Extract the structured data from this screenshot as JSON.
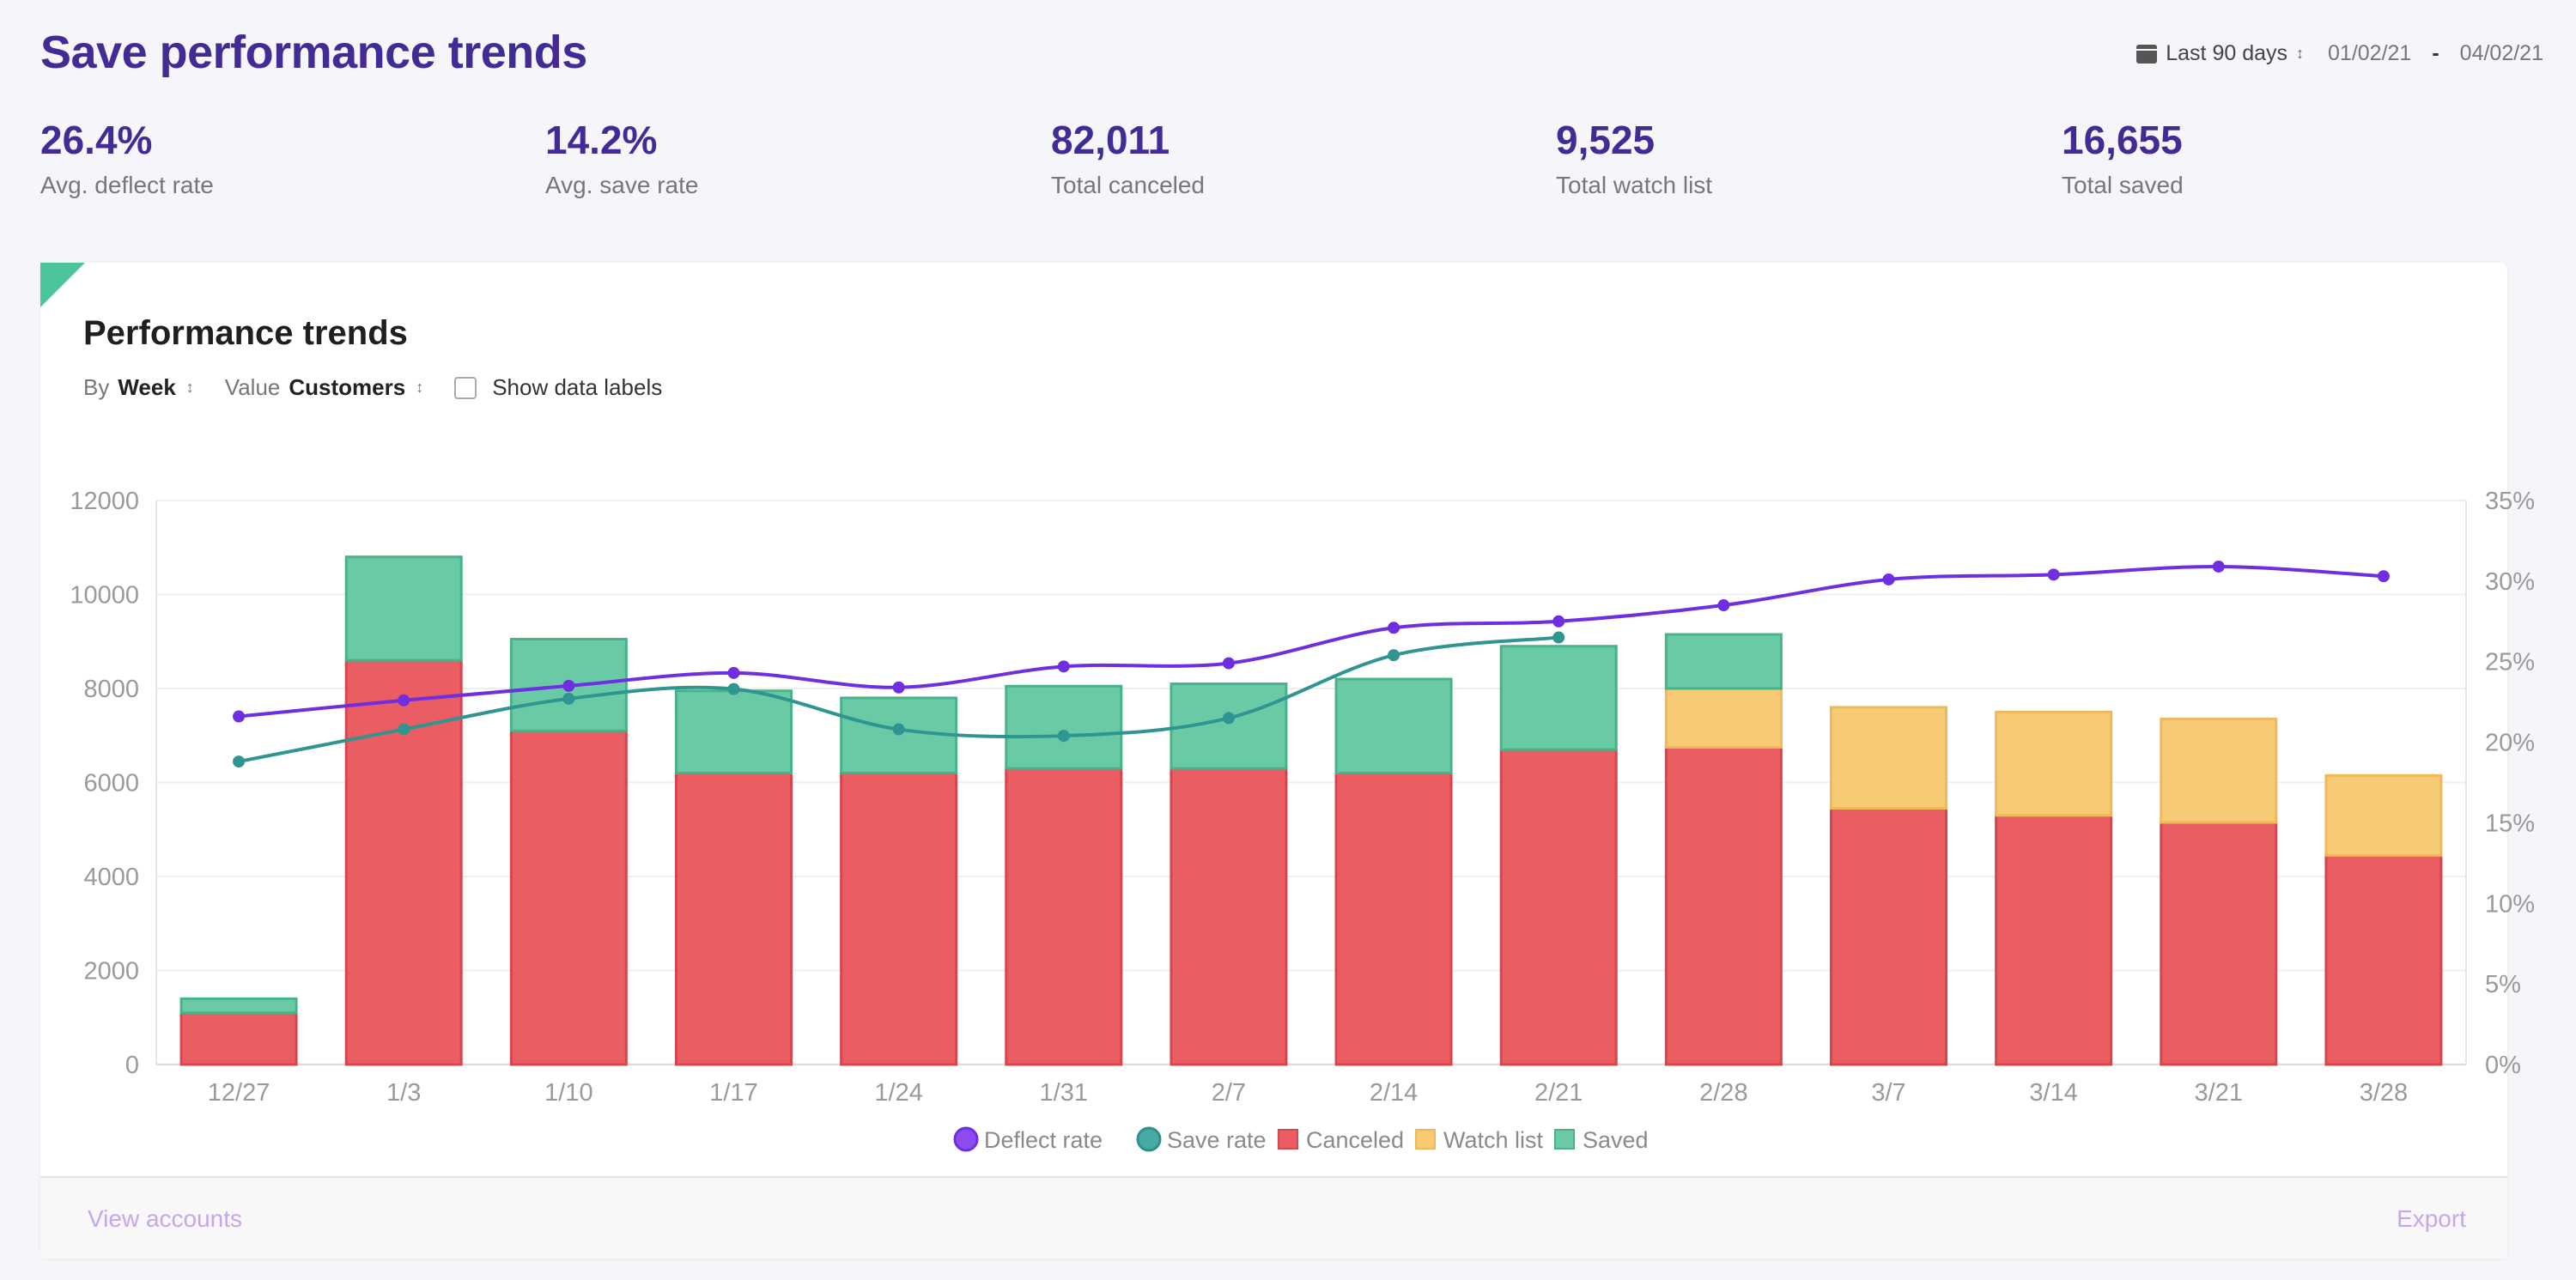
{
  "header": {
    "title": "Save performance trends",
    "range_label": "Last 90 days",
    "date_from": "01/02/21",
    "date_sep": "-",
    "date_to": "04/02/21"
  },
  "kpis": [
    {
      "value": "26.4%",
      "label": "Avg. deflect rate"
    },
    {
      "value": "14.2%",
      "label": "Avg. save rate"
    },
    {
      "value": "82,011",
      "label": "Total canceled"
    },
    {
      "value": "9,525",
      "label": "Total watch list"
    },
    {
      "value": "16,655",
      "label": "Total saved"
    }
  ],
  "card": {
    "title": "Performance trends",
    "by_label": "By",
    "by_value": "Week",
    "value_label": "Value",
    "value_value": "Customers",
    "show_labels": "Show data labels"
  },
  "footer": {
    "left_link": "View accounts",
    "right_link": "Export"
  },
  "colors": {
    "title": "#432b95",
    "canceled": "#e95d63",
    "watch_list": "#f7cb76",
    "saved": "#6bcaa6",
    "deflect_rate": "#6f2fe0",
    "save_rate": "#2f9590",
    "link": "#c7a6ec"
  },
  "chart_data": {
    "type": "bar",
    "stacked": true,
    "categories": [
      "12/27",
      "1/3",
      "1/10",
      "1/17",
      "1/24",
      "1/31",
      "2/7",
      "2/14",
      "2/21",
      "2/28",
      "3/7",
      "3/14",
      "3/21",
      "3/28"
    ],
    "series": [
      {
        "name": "Canceled",
        "kind": "bar",
        "color": "#e95d63",
        "values": [
          1100,
          8600,
          7100,
          6200,
          6200,
          6300,
          6300,
          6200,
          6700,
          6750,
          5450,
          5300,
          5150,
          4450
        ]
      },
      {
        "name": "Watch list",
        "kind": "bar",
        "color": "#f7cb76",
        "values": [
          0,
          0,
          0,
          0,
          0,
          0,
          0,
          0,
          0,
          1250,
          2150,
          2200,
          2200,
          1700
        ]
      },
      {
        "name": "Saved",
        "kind": "bar",
        "color": "#6bcaa6",
        "values": [
          300,
          2200,
          1950,
          1750,
          1600,
          1750,
          1800,
          2000,
          2200,
          1150,
          0,
          0,
          0,
          0
        ]
      },
      {
        "name": "Deflect rate",
        "kind": "line",
        "axis": "right",
        "color": "#6f2fe0",
        "values": [
          21.6,
          22.6,
          23.5,
          24.3,
          23.4,
          24.7,
          24.9,
          27.1,
          27.5,
          28.5,
          30.1,
          30.4,
          30.9,
          30.3
        ]
      },
      {
        "name": "Save rate",
        "kind": "line",
        "axis": "right",
        "color": "#2f9590",
        "values": [
          18.8,
          20.8,
          22.7,
          23.3,
          20.8,
          20.4,
          21.5,
          25.4,
          26.5,
          null,
          null,
          null,
          null,
          null
        ]
      }
    ],
    "ylim": [
      0,
      12000
    ],
    "y_ticks": [
      0,
      2000,
      4000,
      6000,
      8000,
      10000,
      12000
    ],
    "y2lim": [
      0,
      35
    ],
    "y2_ticks": [
      "0%",
      "5%",
      "10%",
      "15%",
      "20%",
      "25%",
      "30%",
      "35%"
    ],
    "legend": [
      "Deflect rate",
      "Save rate",
      "Canceled",
      "Watch list",
      "Saved"
    ],
    "legend_position": "bottom",
    "grid": true
  }
}
